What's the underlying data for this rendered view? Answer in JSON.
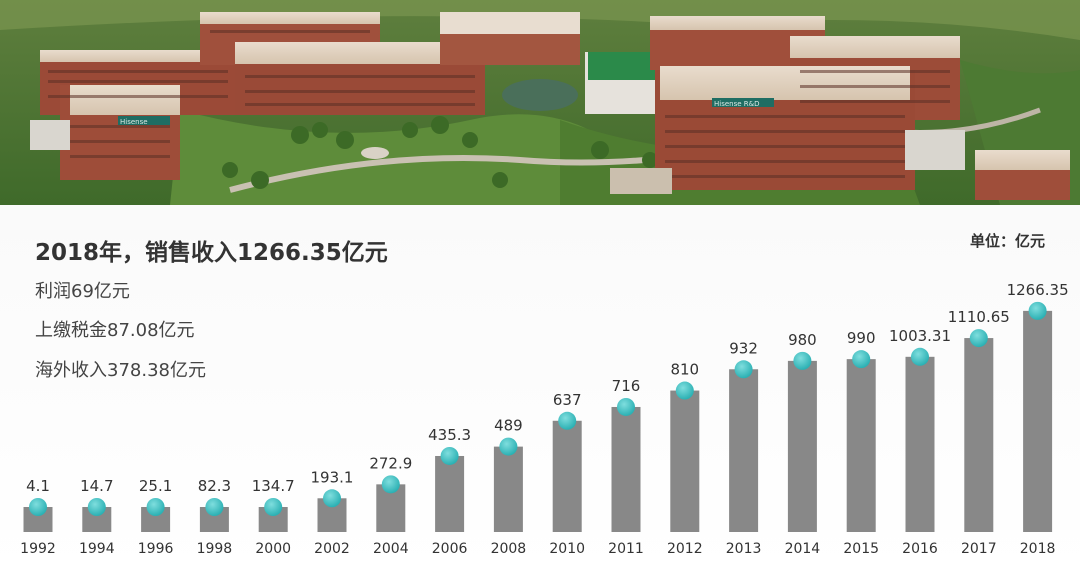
{
  "header": {
    "title": "2018年，销售收入1266.35亿元",
    "unit": "单位：亿元"
  },
  "stats": [
    "利润69亿元",
    "上缴税金87.08亿元",
    "海外收入378.38亿元"
  ],
  "photo": {
    "signs": [
      "Hisense",
      "Hisense R&D"
    ]
  },
  "colors": {
    "bar": "#888888",
    "dot": "#2bb0b3",
    "dot_highlight": "#7fdede",
    "title": "#333333"
  },
  "chart_data": {
    "type": "bar",
    "title": "2018年，销售收入1266.35亿元",
    "xlabel": "",
    "ylabel": "",
    "ylim": [
      0,
      1300
    ],
    "grid": false,
    "legend": "none",
    "categories": [
      "1992",
      "1994",
      "1996",
      "1998",
      "2000",
      "2002",
      "2004",
      "2006",
      "2008",
      "2010",
      "2011",
      "2012",
      "2013",
      "2014",
      "2015",
      "2016",
      "2017",
      "2018"
    ],
    "values": [
      4.1,
      14.7,
      25.1,
      82.3,
      134.7,
      193.1,
      272.9,
      435.3,
      489,
      637,
      716,
      810,
      932,
      980,
      990,
      1003.31,
      1110.65,
      1266.35
    ],
    "data_labels": [
      "4.1",
      "14.7",
      "25.1",
      "82.3",
      "134.7",
      "193.1",
      "272.9",
      "435.3",
      "489",
      "637",
      "716",
      "810",
      "932",
      "980",
      "990",
      "1003.31",
      "1110.65",
      "1266.35"
    ]
  }
}
